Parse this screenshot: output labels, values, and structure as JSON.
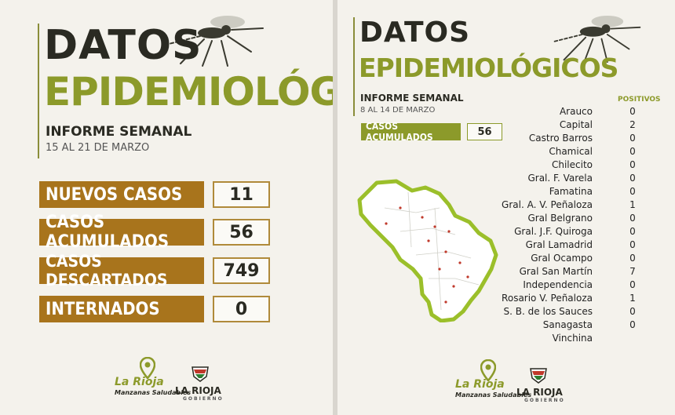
{
  "left": {
    "title_line1": "DATOS",
    "title_line2": "EPIDEMIOLÓGICOS",
    "subtitle": "INFORME SEMANAL",
    "date_range": "15 AL 21 DE MARZO",
    "stats": [
      {
        "label": "NUEVOS CASOS",
        "value": "11"
      },
      {
        "label": "CASOS ACUMULADOS",
        "value": "56"
      },
      {
        "label": "CASOS DESCARTADOS",
        "value": "749"
      },
      {
        "label": "INTERNADOS",
        "value": "0"
      }
    ],
    "logos": {
      "brand": "La Rioja",
      "brand_sub": "Manzanas Saludables",
      "gov": "LA RIOJA",
      "gov_sub": "GOBIERNO"
    }
  },
  "right": {
    "title_line1": "DATOS",
    "title_line2": "EPIDEMIOLÓGICOS",
    "subtitle": "INFORME SEMANAL",
    "date_range": "8 AL 14 DE MARZO",
    "accum_label": "CASOS ACUMULADOS",
    "accum_value": "56",
    "positivos_header": "POSITIVOS",
    "departments": [
      {
        "name": "Arauco",
        "value": "0"
      },
      {
        "name": "Capital",
        "value": "2"
      },
      {
        "name": "Castro Barros",
        "value": "0"
      },
      {
        "name": "Chamical",
        "value": "0"
      },
      {
        "name": "Chilecito",
        "value": "0"
      },
      {
        "name": "Gral. F. Varela",
        "value": "0"
      },
      {
        "name": "Famatina",
        "value": "0"
      },
      {
        "name": "Gral. A. V. Peñaloza",
        "value": "1"
      },
      {
        "name": "Gral Belgrano",
        "value": "0"
      },
      {
        "name": "Gral. J.F. Quiroga",
        "value": "0"
      },
      {
        "name": "Gral Lamadrid",
        "value": "0"
      },
      {
        "name": "Gral Ocampo",
        "value": "0"
      },
      {
        "name": "Gral San Martín",
        "value": "7"
      },
      {
        "name": "Independencia",
        "value": "0"
      },
      {
        "name": "Rosario V. Peñaloza",
        "value": "1"
      },
      {
        "name": "S. B. de los Sauces",
        "value": "0"
      },
      {
        "name": "Sanagasta",
        "value": "0"
      },
      {
        "name": "Vinchina",
        "value": ""
      }
    ],
    "logos": {
      "brand": "La Rioja",
      "brand_sub": "Manzanas Saludables",
      "gov": "LA RIOJA",
      "gov_sub": "GOBIERNO"
    }
  },
  "colors": {
    "dark": "#2a2a22",
    "olive": "#8c9a2a",
    "brown": "#a8741c",
    "map_green": "#9bbf2a"
  }
}
